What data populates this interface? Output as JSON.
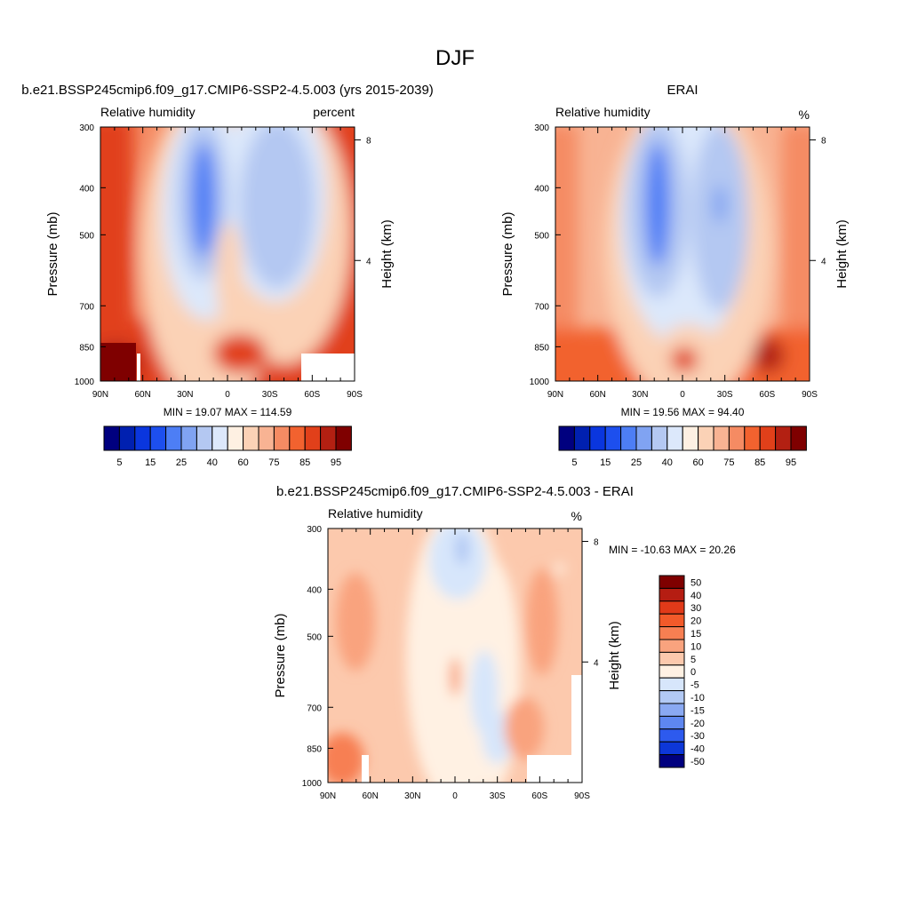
{
  "figure": {
    "title": "DJF"
  },
  "chart_data": [
    {
      "type": "heatmap",
      "title": "b.e21.BSSP245cmip6.f09_g17.CMIP6-SSP2-4.5.003 (yrs 2015-2039)",
      "subtitle_left": "Relative humidity",
      "subtitle_right": "percent",
      "xlabel": "",
      "ylabel": "Pressure (mb)",
      "y2label": "Height (km)",
      "x_ticks": [
        "90N",
        "60N",
        "30N",
        "0",
        "30S",
        "60S",
        "90S"
      ],
      "y_ticks": [
        "300",
        "400",
        "500",
        "700",
        "850",
        "1000"
      ],
      "y2_ticks": [
        "8",
        "4"
      ],
      "stats": "MIN =  19.07  MAX = 114.59",
      "min": 19.07,
      "max": 114.59,
      "colorbar_labels": [
        "5",
        "15",
        "25",
        "40",
        "60",
        "75",
        "85",
        "95"
      ]
    },
    {
      "type": "heatmap",
      "title": "ERAI",
      "subtitle_left": "Relative humidity",
      "subtitle_right": "%",
      "xlabel": "",
      "ylabel": "Pressure (mb)",
      "y2label": "Height (km)",
      "x_ticks": [
        "90N",
        "60N",
        "30N",
        "0",
        "30S",
        "60S",
        "90S"
      ],
      "y_ticks": [
        "300",
        "400",
        "500",
        "700",
        "850",
        "1000"
      ],
      "y2_ticks": [
        "8",
        "4"
      ],
      "stats": "MIN =  19.56  MAX =  94.40",
      "min": 19.56,
      "max": 94.4,
      "colorbar_labels": [
        "5",
        "15",
        "25",
        "40",
        "60",
        "75",
        "85",
        "95"
      ]
    },
    {
      "type": "heatmap",
      "title": "b.e21.BSSP245cmip6.f09_g17.CMIP6-SSP2-4.5.003 - ERAI",
      "subtitle_left": "Relative humidity",
      "subtitle_right": "%",
      "xlabel": "",
      "ylabel": "Pressure (mb)",
      "y2label": "Height (km)",
      "x_ticks": [
        "90N",
        "60N",
        "30N",
        "0",
        "30S",
        "60S",
        "90S"
      ],
      "y_ticks": [
        "300",
        "400",
        "500",
        "700",
        "850",
        "1000"
      ],
      "y2_ticks": [
        "8",
        "4"
      ],
      "stats": "MIN = -10.63  MAX =  20.26",
      "min": -10.63,
      "max": 20.26,
      "colorbar_labels": [
        "50",
        "40",
        "30",
        "20",
        "15",
        "10",
        "5",
        "0",
        "-5",
        "-10",
        "-15",
        "-20",
        "-30",
        "-40",
        "-50"
      ]
    }
  ],
  "colormaps": {
    "abs": [
      "#00007f",
      "#0020b0",
      "#0a36de",
      "#1d4fee",
      "#4d7ef5",
      "#80a3f2",
      "#b4c8f2",
      "#dce8fb",
      "#fef0e2",
      "#fbd2b6",
      "#f8b393",
      "#f58b63",
      "#f2622f",
      "#e1401a",
      "#b32012",
      "#7f0000"
    ],
    "diff": [
      "#7f0000",
      "#b51d12",
      "#e13a19",
      "#f25a2a",
      "#f77f52",
      "#f9a37e",
      "#fcc9ad",
      "#fff1e3",
      "#d7e6fb",
      "#b2c9f4",
      "#8aa9f2",
      "#5e87f0",
      "#2d5aee",
      "#0d37d8",
      "#00007f"
    ]
  }
}
